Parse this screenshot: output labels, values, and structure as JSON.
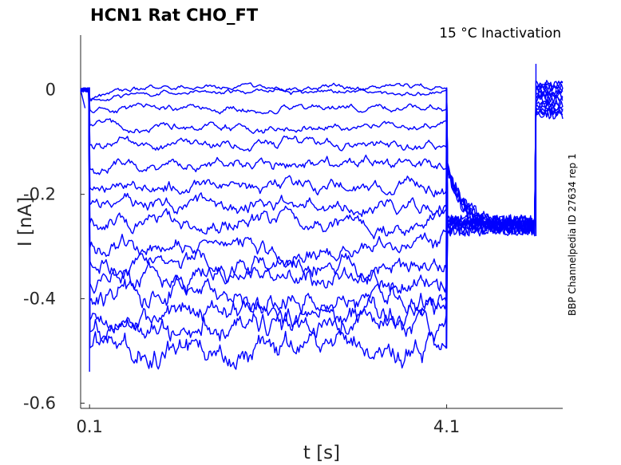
{
  "chart_data": {
    "type": "line",
    "title": "HCN1  Rat  CHO_FT",
    "annotation": "15 °C  Inactivation",
    "side_label": "BBP Channelpedia ID 27634 rep 1",
    "xlabel": "t [s]",
    "ylabel": "I [nA]",
    "xlim": [
      0.0,
      5.4
    ],
    "ylim": [
      -0.61,
      0.105
    ],
    "xticks": [
      0.1,
      4.1
    ],
    "xtick_labels": [
      "0.1",
      "4.1"
    ],
    "yticks": [
      0,
      -0.2,
      -0.4,
      -0.6
    ],
    "ytick_labels": [
      "0",
      "-0.2",
      "-0.4",
      "-0.6"
    ],
    "grid": false,
    "color": "#0000ff",
    "protocol_times_s": {
      "step_on": 0.1,
      "step_off": 4.1,
      "return": 5.1
    },
    "series_step_levels_nA": [
      0.005,
      -0.005,
      -0.035,
      -0.07,
      -0.105,
      -0.145,
      -0.185,
      -0.215,
      -0.255,
      -0.3,
      -0.335,
      -0.365,
      -0.395,
      -0.43,
      -0.455,
      -0.495
    ],
    "tail_level_nA": -0.26
  }
}
